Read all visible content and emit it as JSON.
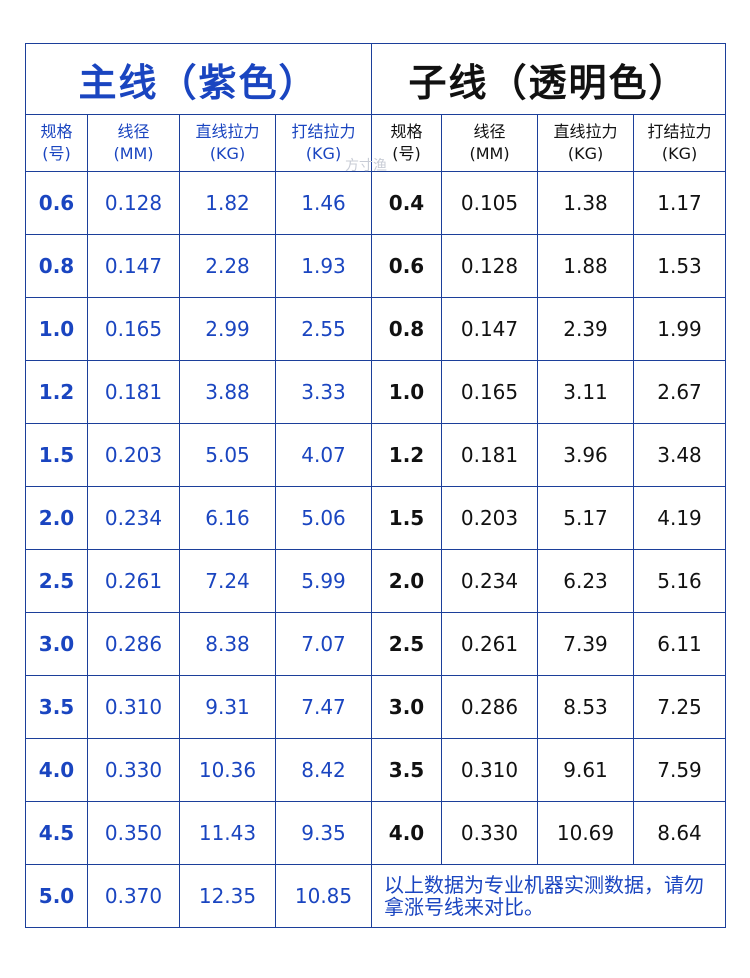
{
  "titles": {
    "main": "主线（紫色）",
    "sub": "子线（透明色）"
  },
  "headers": {
    "main": [
      {
        "l1": "规格",
        "l2": "(号)"
      },
      {
        "l1": "线径",
        "l2": "(MM)"
      },
      {
        "l1": "直线拉力",
        "l2": "(KG)"
      },
      {
        "l1": "打结拉力",
        "l2": "(KG)"
      }
    ],
    "sub": [
      {
        "l1": "规格",
        "l2": "(号)"
      },
      {
        "l1": "线径",
        "l2": "(MM)"
      },
      {
        "l1": "直线拉力",
        "l2": "(KG)"
      },
      {
        "l1": "打结拉力",
        "l2": "(KG)"
      }
    ]
  },
  "main_rows": [
    [
      "0.6",
      "0.128",
      "1.82",
      "1.46"
    ],
    [
      "0.8",
      "0.147",
      "2.28",
      "1.93"
    ],
    [
      "1.0",
      "0.165",
      "2.99",
      "2.55"
    ],
    [
      "1.2",
      "0.181",
      "3.88",
      "3.33"
    ],
    [
      "1.5",
      "0.203",
      "5.05",
      "4.07"
    ],
    [
      "2.0",
      "0.234",
      "6.16",
      "5.06"
    ],
    [
      "2.5",
      "0.261",
      "7.24",
      "5.99"
    ],
    [
      "3.0",
      "0.286",
      "8.38",
      "7.07"
    ],
    [
      "3.5",
      "0.310",
      "9.31",
      "7.47"
    ],
    [
      "4.0",
      "0.330",
      "10.36",
      "8.42"
    ],
    [
      "4.5",
      "0.350",
      "11.43",
      "9.35"
    ],
    [
      "5.0",
      "0.370",
      "12.35",
      "10.85"
    ]
  ],
  "sub_rows": [
    [
      "0.4",
      "0.105",
      "1.38",
      "1.17"
    ],
    [
      "0.6",
      "0.128",
      "1.88",
      "1.53"
    ],
    [
      "0.8",
      "0.147",
      "2.39",
      "1.99"
    ],
    [
      "1.0",
      "0.165",
      "3.11",
      "2.67"
    ],
    [
      "1.2",
      "0.181",
      "3.96",
      "3.48"
    ],
    [
      "1.5",
      "0.203",
      "5.17",
      "4.19"
    ],
    [
      "2.0",
      "0.234",
      "6.23",
      "5.16"
    ],
    [
      "2.5",
      "0.261",
      "7.39",
      "6.11"
    ],
    [
      "3.0",
      "0.286",
      "8.53",
      "7.25"
    ],
    [
      "3.5",
      "0.310",
      "9.61",
      "7.59"
    ],
    [
      "4.0",
      "0.330",
      "10.69",
      "8.64"
    ]
  ],
  "note": "以上数据为专业机器实测数据，请勿拿涨号线来对比。",
  "watermark": "方寸渔",
  "colors": {
    "main_accent": "#1a45c0",
    "sub_text": "#111111",
    "border": "#1c3f9a"
  }
}
